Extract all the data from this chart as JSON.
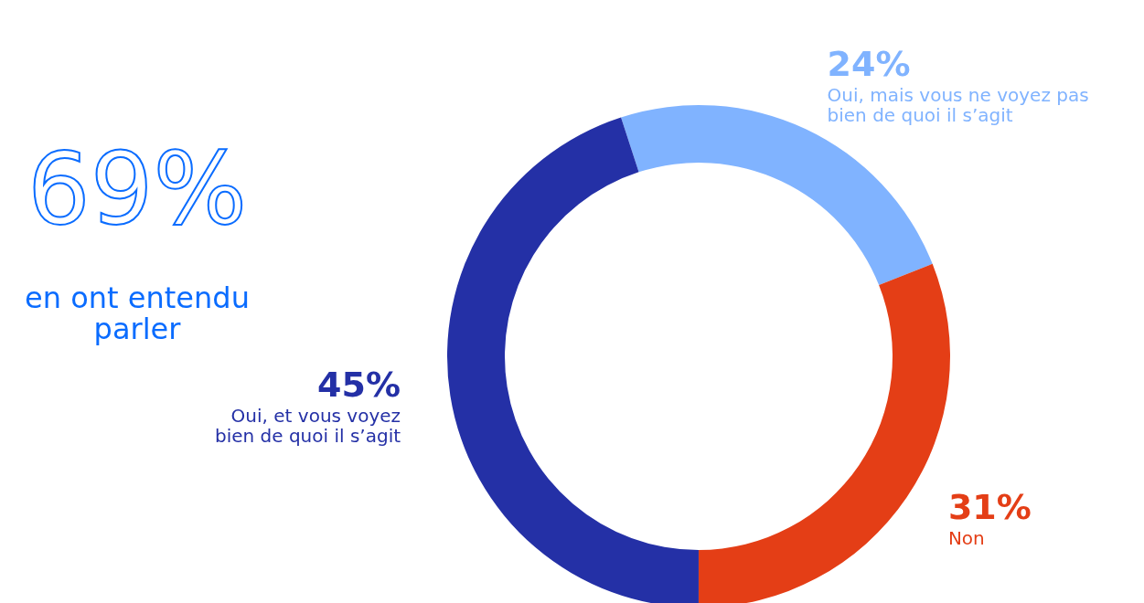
{
  "chart_data": {
    "type": "donut",
    "categories": [
      "Oui, mais vous ne voyez pas\nbien de quoi il s’agit",
      "Non",
      "Oui, et vous voyez\nbien de quoi il s’agit"
    ],
    "values": [
      24,
      31,
      45
    ],
    "colors": [
      "#80b3ff",
      "#e43e16",
      "#2430a6"
    ],
    "value_labels": [
      "24%",
      "31%",
      "45%"
    ],
    "annotations": [
      "69%",
      "en ont entendu\nparler"
    ]
  }
}
